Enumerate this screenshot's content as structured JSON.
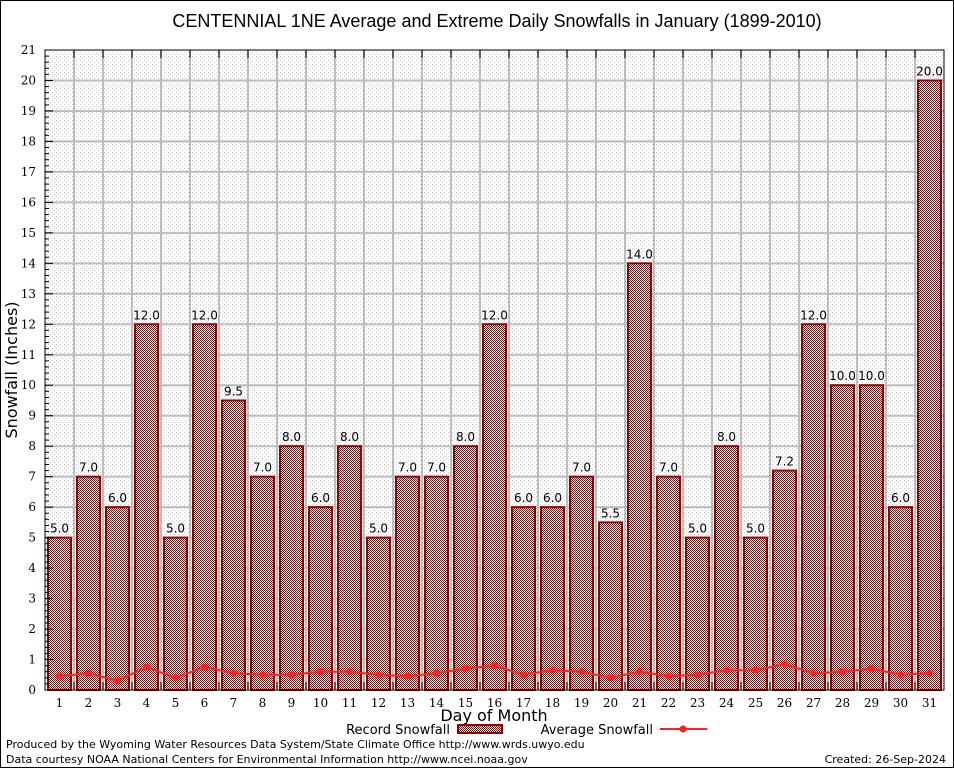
{
  "chart_data": {
    "type": "bar",
    "title": "CENTENNIAL 1NE Average and Extreme Daily Snowfalls in January (1899-2010)",
    "xlabel": "Day of Month",
    "ylabel": "Snowfall (Inches)",
    "ylim": [
      0,
      21
    ],
    "yticks": [
      0,
      1,
      2,
      3,
      4,
      5,
      6,
      7,
      8,
      9,
      10,
      11,
      12,
      13,
      14,
      15,
      16,
      17,
      18,
      19,
      20,
      21
    ],
    "grid": true,
    "categories": [
      "1",
      "2",
      "3",
      "4",
      "5",
      "6",
      "7",
      "8",
      "9",
      "10",
      "11",
      "12",
      "13",
      "14",
      "15",
      "16",
      "17",
      "18",
      "19",
      "20",
      "21",
      "22",
      "23",
      "24",
      "25",
      "26",
      "27",
      "28",
      "29",
      "30",
      "31"
    ],
    "series": [
      {
        "name": "Record Snowfall",
        "kind": "bar",
        "color": "#990000",
        "values": [
          5.0,
          7.0,
          6.0,
          12.0,
          5.0,
          12.0,
          9.5,
          7.0,
          8.0,
          6.0,
          8.0,
          5.0,
          7.0,
          7.0,
          8.0,
          12.0,
          6.0,
          6.0,
          7.0,
          5.5,
          14.0,
          7.0,
          5.0,
          8.0,
          5.0,
          7.2,
          12.0,
          10.0,
          10.0,
          6.0,
          20.0
        ],
        "labels": [
          "5.0",
          "7.0",
          "6.0",
          "12.0",
          "5.0",
          "12.0",
          "9.5",
          "7.0",
          "8.0",
          "6.0",
          "8.0",
          "5.0",
          "7.0",
          "7.0",
          "8.0",
          "12.0",
          "6.0",
          "6.0",
          "7.0",
          "5.5",
          "14.0",
          "7.0",
          "5.0",
          "8.0",
          "5.0",
          "7.2",
          "12.0",
          "10.0",
          "10.0",
          "6.0",
          "20.0"
        ]
      },
      {
        "name": "Average Snowfall",
        "kind": "line",
        "color": "#ff2020",
        "values": [
          0.45,
          0.55,
          0.3,
          0.75,
          0.4,
          0.75,
          0.55,
          0.5,
          0.5,
          0.6,
          0.6,
          0.5,
          0.45,
          0.55,
          0.7,
          0.8,
          0.5,
          0.65,
          0.6,
          0.4,
          0.6,
          0.45,
          0.5,
          0.65,
          0.65,
          0.85,
          0.55,
          0.6,
          0.7,
          0.5,
          0.55
        ]
      }
    ],
    "legend": [
      "Record Snowfall",
      "Average Snowfall"
    ],
    "legend_placement": "bottom-center"
  },
  "footer": {
    "line1": "Produced by the Wyoming Water Resources Data System/State Climate Office http://www.wrds.uwyo.edu",
    "line2": "Data courtesy NOAA National Centers for Environmental Information http://www.ncei.noaa.gov",
    "created": "Created: 26-Sep-2024"
  }
}
